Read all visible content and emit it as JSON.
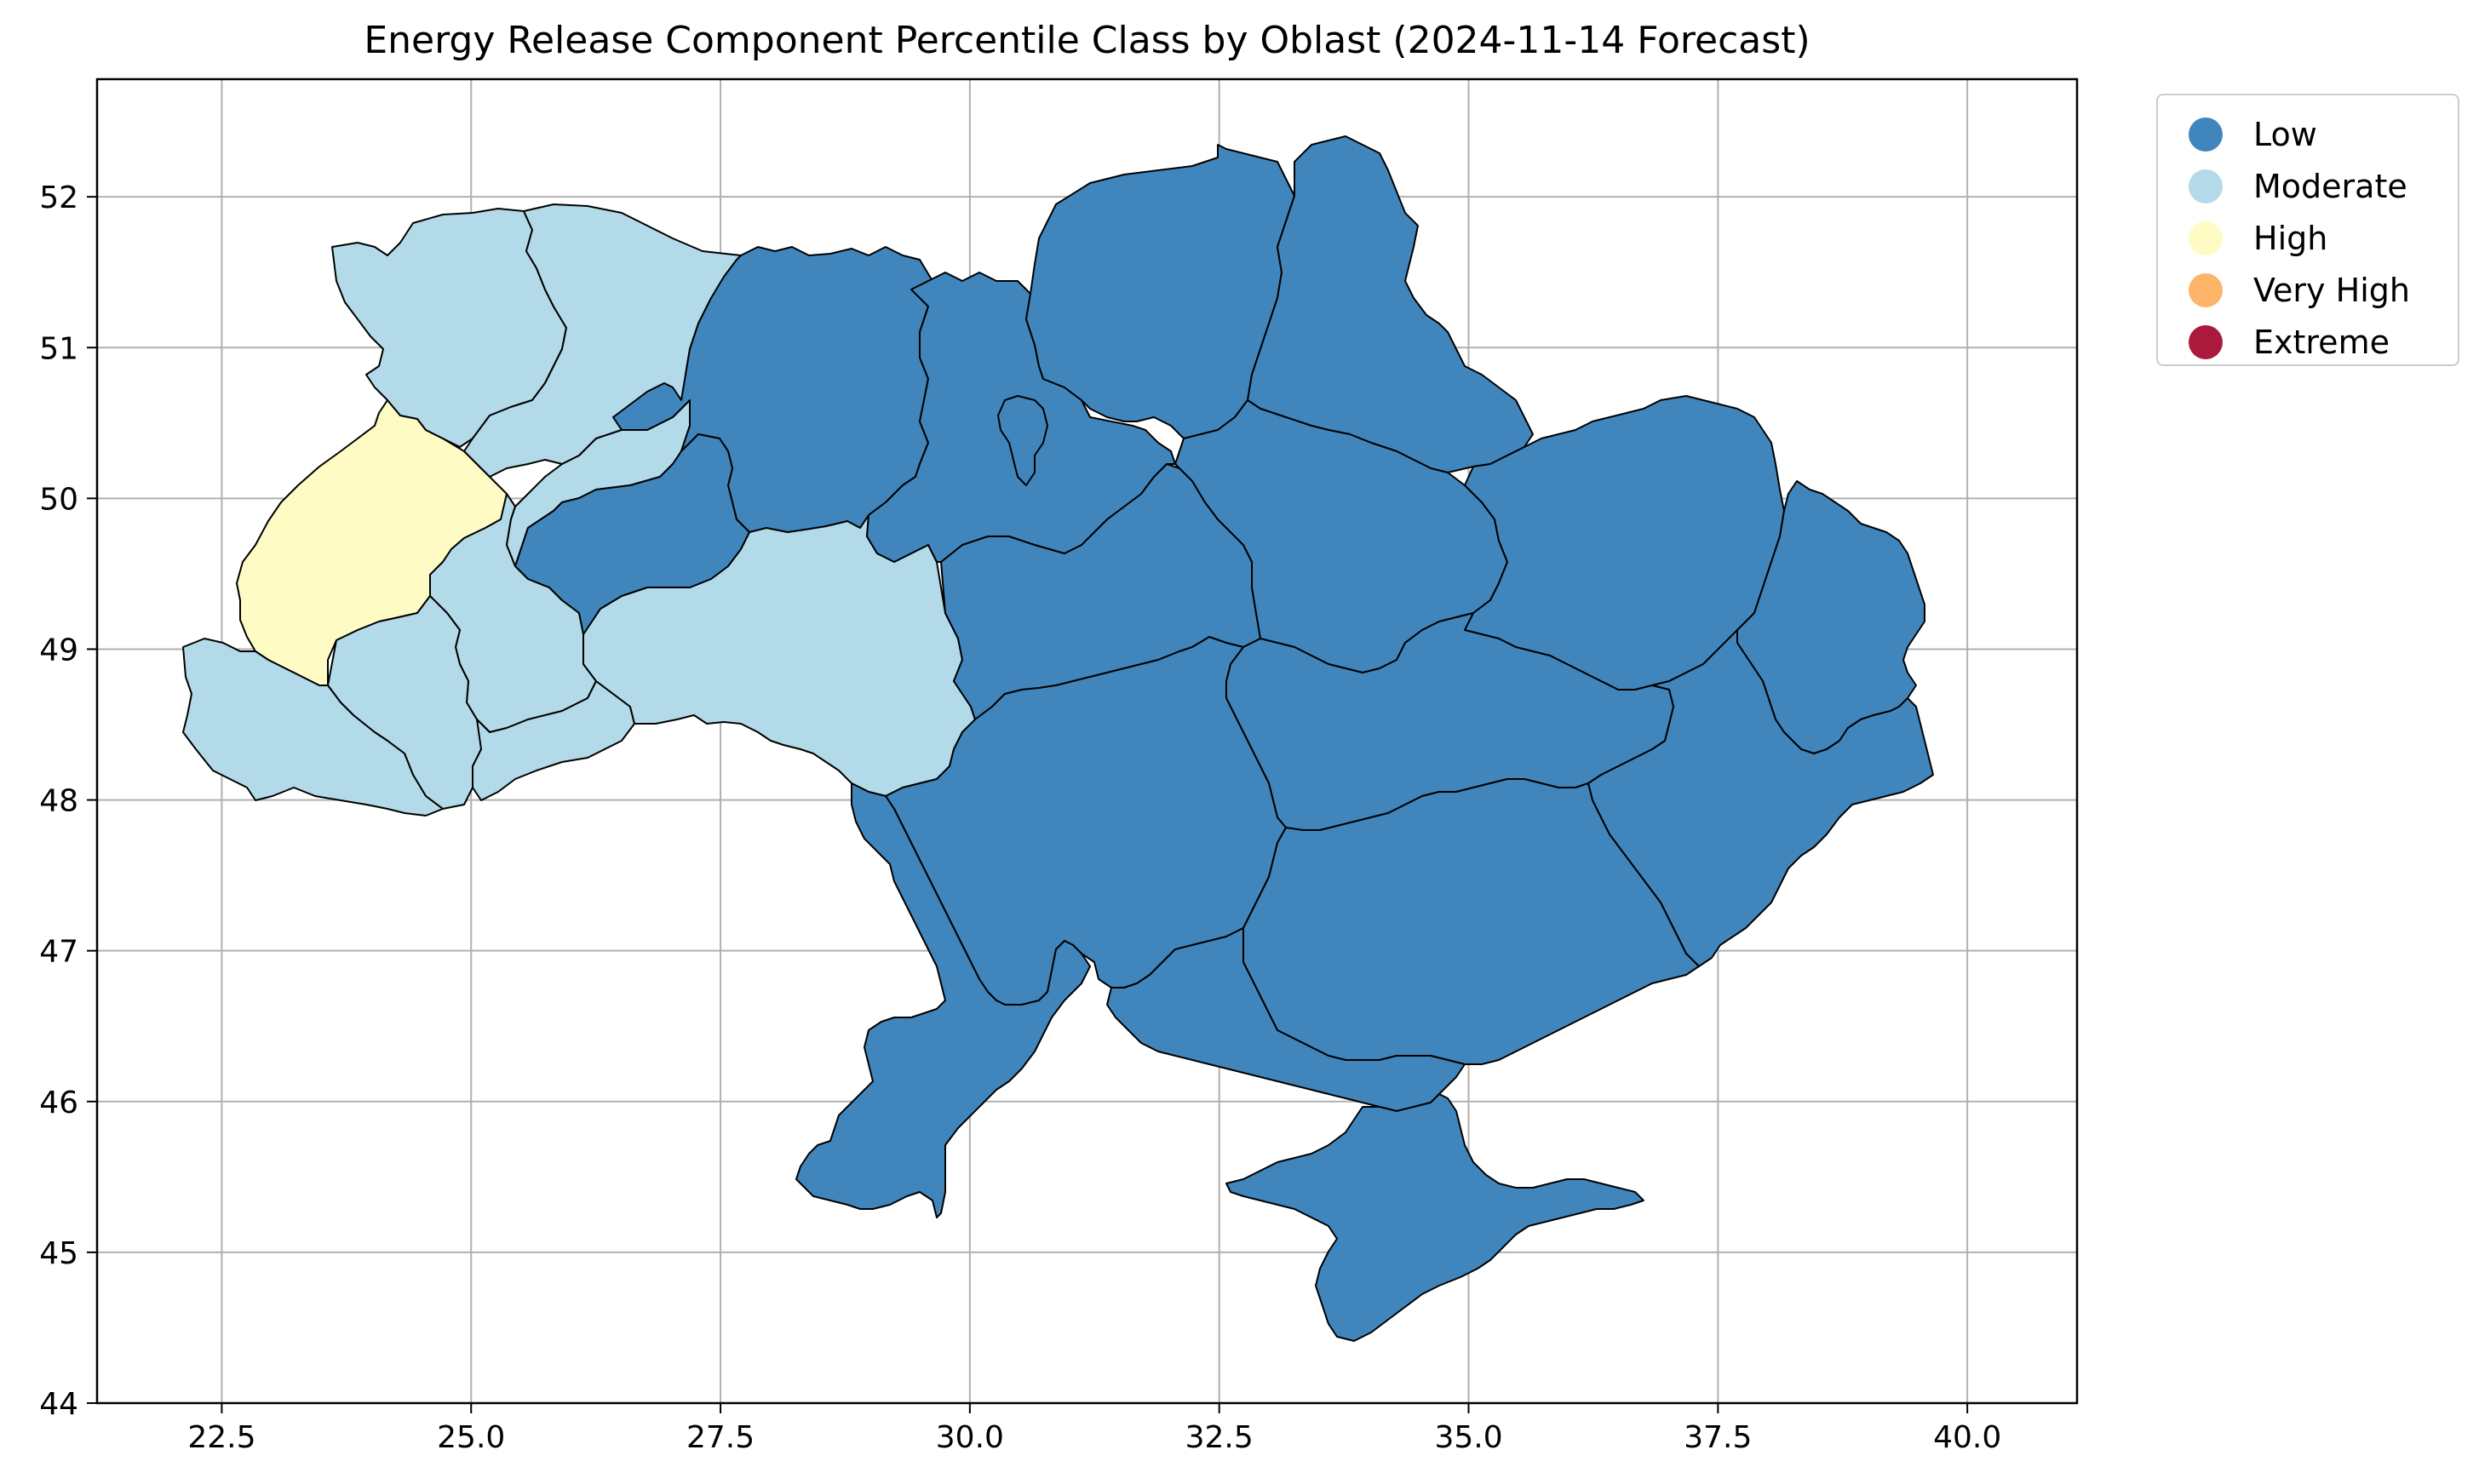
{
  "title": "Energy Release Component Percentile Class by Oblast (2024-11-14 Forecast)",
  "colors": {
    "Low": "#4086bd",
    "Moderate": "#b2dae9",
    "High": "#fefcc4",
    "Very High": "#fdb468",
    "Extreme": "#ab1a3c"
  },
  "legend": [
    {
      "label": "Low",
      "color": "#4086bd"
    },
    {
      "label": "Moderate",
      "color": "#b2dae9"
    },
    {
      "label": "High",
      "color": "#fefcc4"
    },
    {
      "label": "Very High",
      "color": "#fdb468"
    },
    {
      "label": "Extreme",
      "color": "#ab1a3c"
    }
  ],
  "axes": {
    "x_ticks": [
      "22.5",
      "25.0",
      "27.5",
      "30.0",
      "32.5",
      "35.0",
      "37.5",
      "40.0"
    ],
    "y_ticks": [
      "44",
      "45",
      "46",
      "47",
      "48",
      "49",
      "50",
      "51",
      "52"
    ],
    "xlim": [
      21.25,
      41.1
    ],
    "ylim": [
      44.0,
      52.78
    ],
    "grid": true,
    "legend_placement": "outside-upper-right"
  },
  "regions": [
    {
      "class": "High"
    },
    {
      "class": "Moderate"
    },
    {
      "class": "Moderate"
    },
    {
      "class": "Moderate"
    },
    {
      "class": "Moderate"
    },
    {
      "class": "Moderate"
    },
    {
      "class": "Moderate"
    },
    {
      "class": "Moderate"
    },
    {
      "class": "Moderate"
    },
    {
      "class": "Low"
    },
    {
      "class": "Low"
    },
    {
      "class": "Low"
    },
    {
      "class": "Low"
    },
    {
      "class": "Low"
    },
    {
      "class": "Low"
    },
    {
      "class": "Low"
    },
    {
      "class": "Low"
    },
    {
      "class": "Low"
    },
    {
      "class": "Low"
    },
    {
      "class": "Low"
    },
    {
      "class": "Low"
    },
    {
      "class": "Low"
    },
    {
      "class": "Low"
    },
    {
      "class": "Low"
    },
    {
      "class": "Low"
    },
    {
      "class": "Low"
    }
  ]
}
